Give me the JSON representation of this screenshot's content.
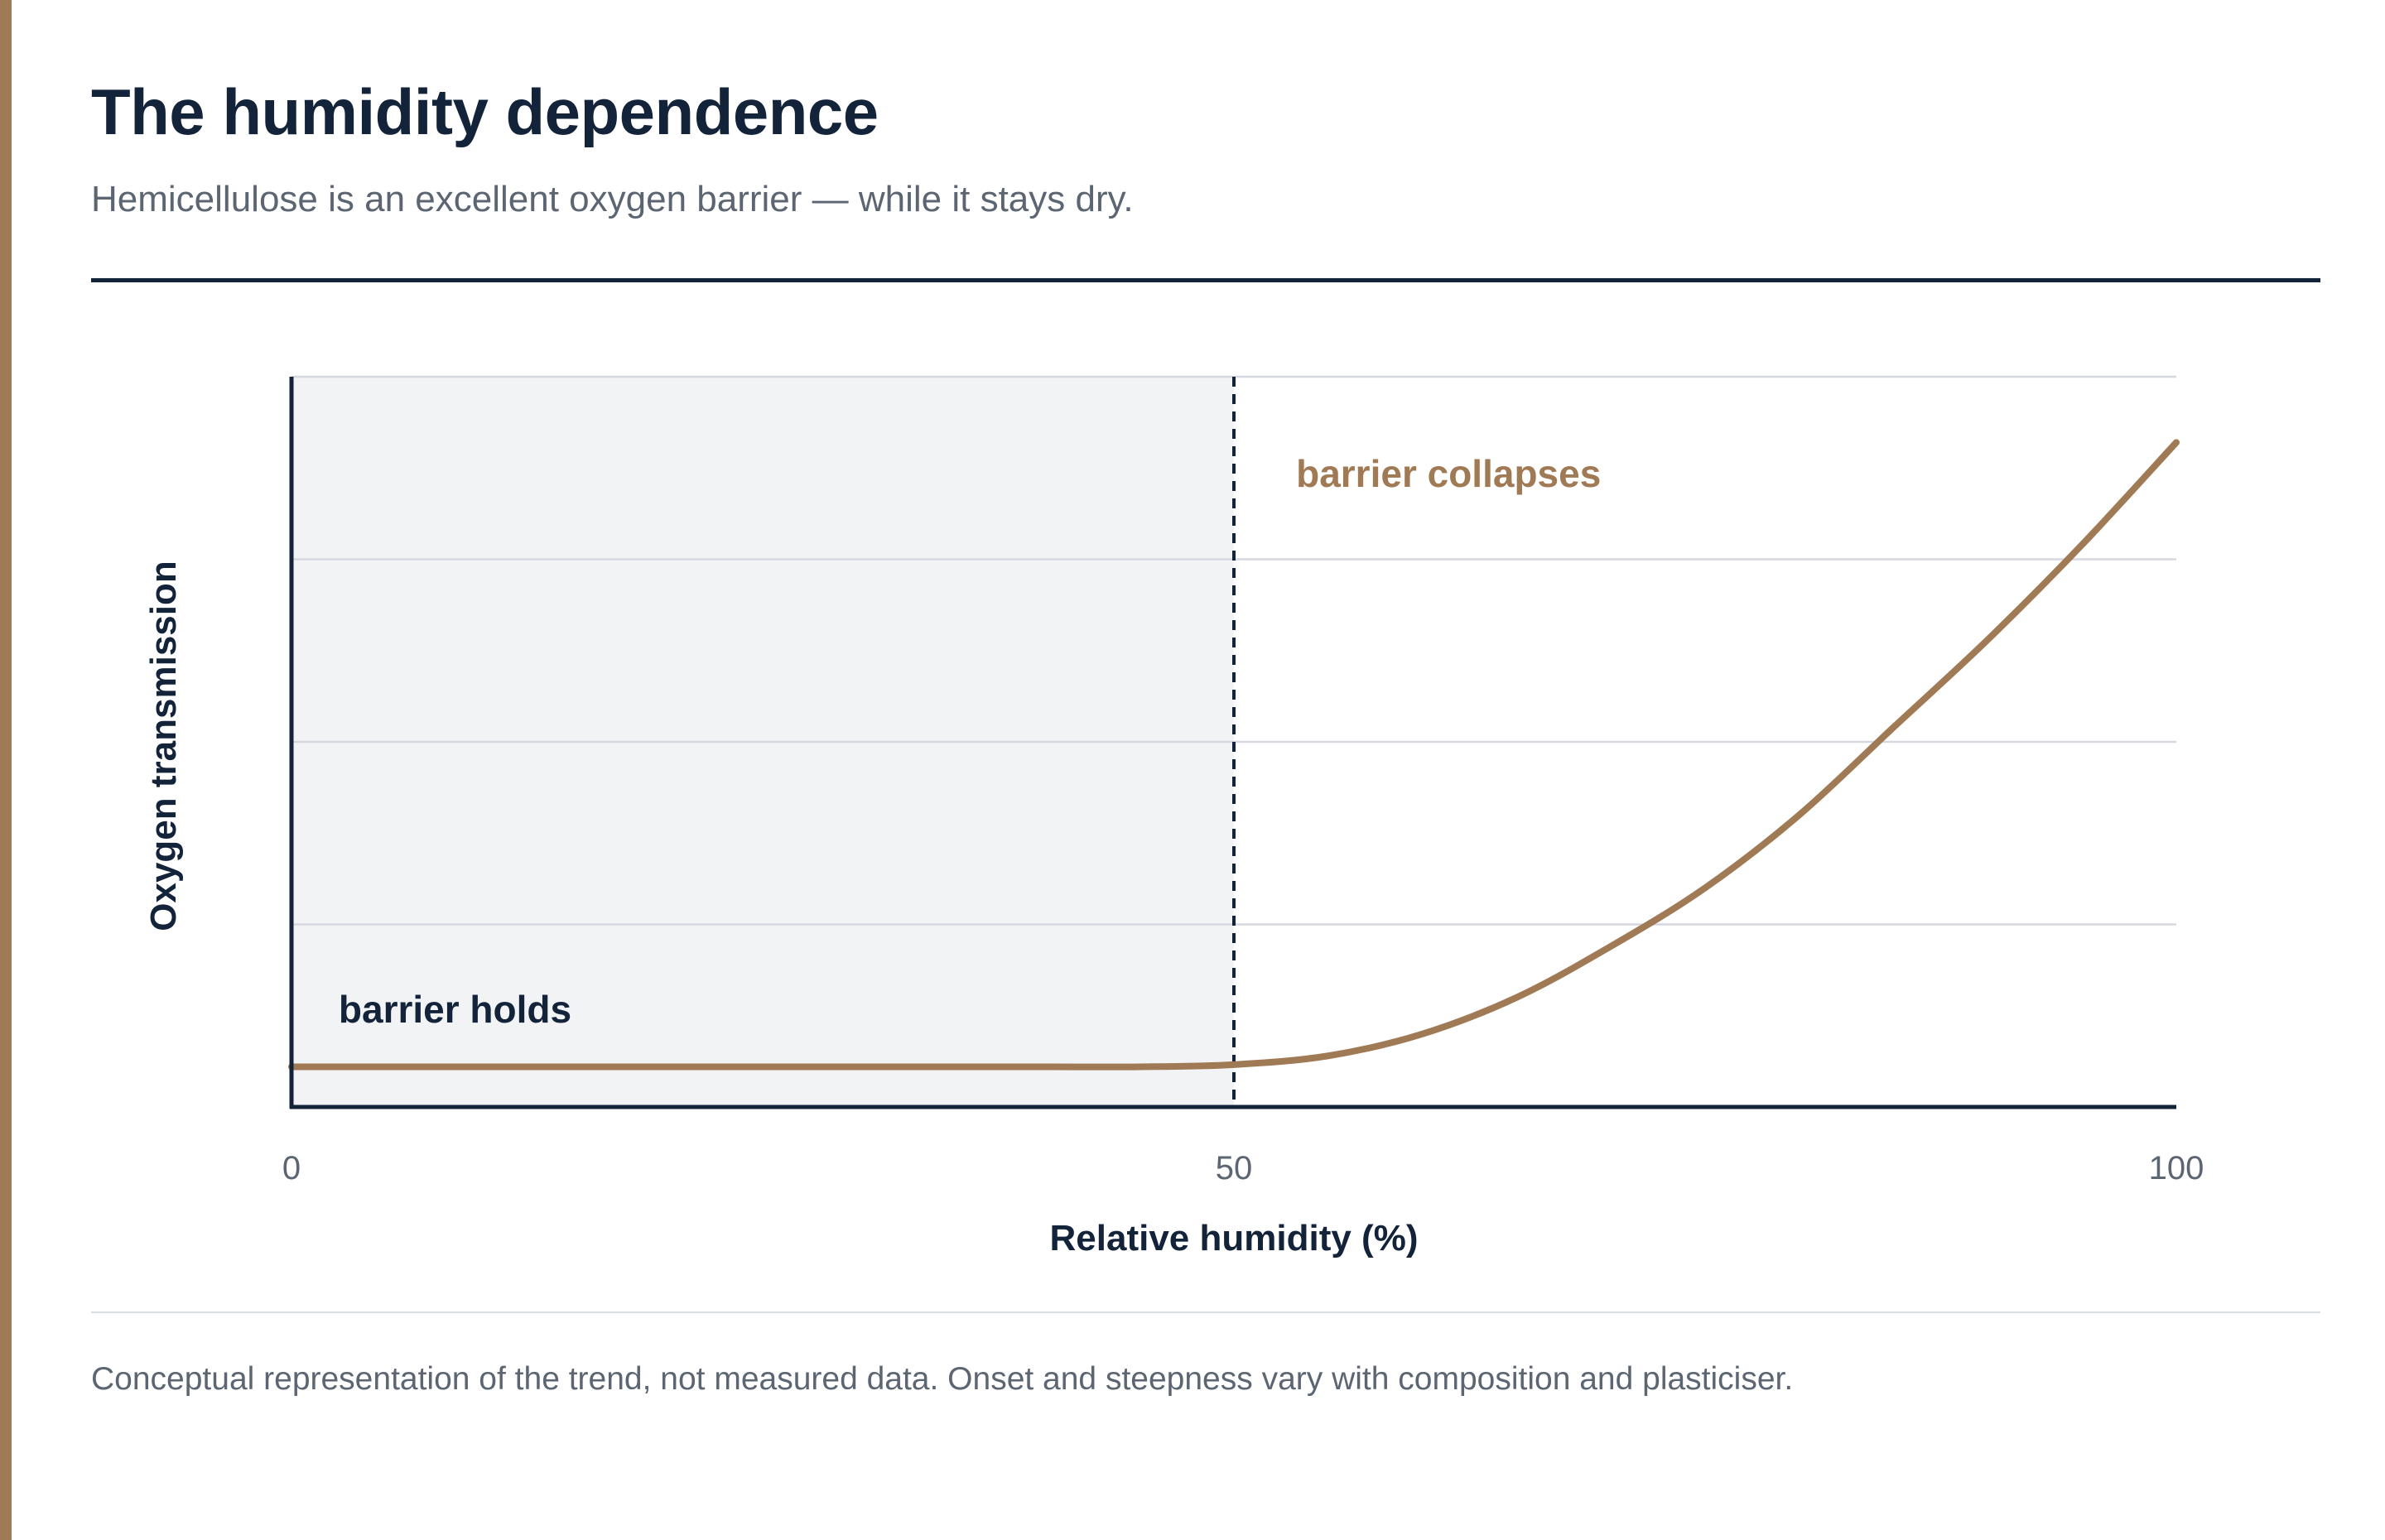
{
  "header": {
    "title": "The humidity dependence",
    "subtitle": "Hemicellulose is an excellent oxygen barrier — while it stays dry."
  },
  "footnote": "Conceptual representation of the trend, not measured data. Onset and steepness vary with composition and plasticiser.",
  "colors": {
    "accent": "#A07A55",
    "ink": "#13233A",
    "muted": "#5C6572",
    "grid": "#D5D9DF",
    "shade": "#F2F3F5"
  },
  "chart_data": {
    "type": "line",
    "title": "",
    "xlabel": "Relative humidity (%)",
    "ylabel": "Oxygen transmission",
    "xlim": [
      0,
      100
    ],
    "ylim": [
      0,
      1
    ],
    "xticks": [
      0,
      50,
      100
    ],
    "xtick_labels": [
      "0",
      "50",
      "100"
    ],
    "grid": "horizontal",
    "yticks_shown": false,
    "shaded_region": {
      "x_from": 0,
      "x_to": 50
    },
    "threshold": {
      "x": 50,
      "style": "dashed"
    },
    "annotations": {
      "left_region": "barrier holds",
      "right_region": "barrier collapses"
    },
    "series": [
      {
        "x": [
          0,
          10,
          20,
          30,
          40,
          45,
          50,
          55,
          60,
          65,
          70,
          75,
          80,
          85,
          90,
          95,
          100
        ],
        "y": [
          0.055,
          0.055,
          0.055,
          0.055,
          0.055,
          0.055,
          0.058,
          0.07,
          0.1,
          0.15,
          0.22,
          0.3,
          0.4,
          0.52,
          0.64,
          0.77,
          0.91
        ]
      }
    ]
  }
}
